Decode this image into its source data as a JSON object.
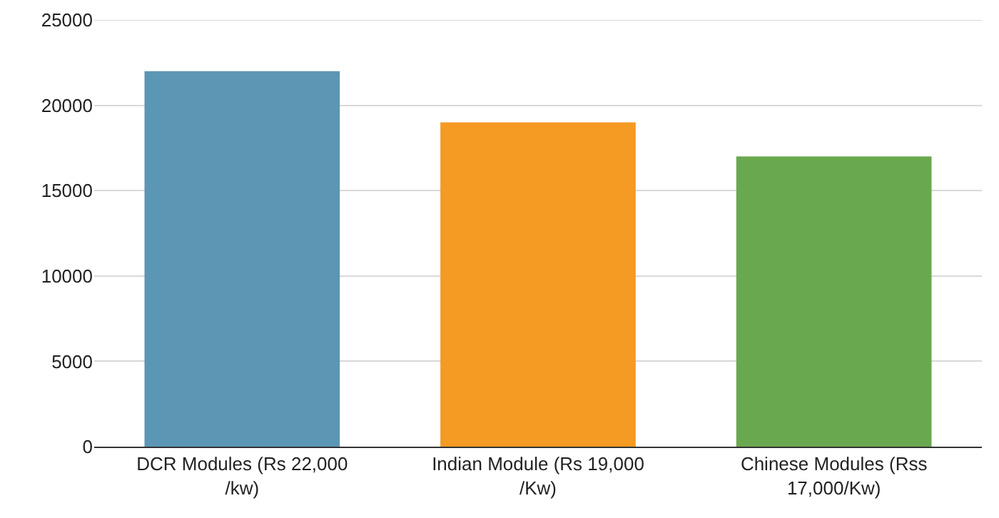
{
  "chart_data": {
    "type": "bar",
    "categories": [
      "DCR Modules (Rs 22,000 /kw)",
      "Indian Module (Rs 19,000 /Kw)",
      "Chinese Modules (Rss 17,000/Kw)"
    ],
    "values": [
      22000,
      19000,
      17000
    ],
    "colors": [
      "#5b96b4",
      "#f59a23",
      "#6aa84f"
    ],
    "ylim": [
      0,
      25000
    ],
    "yticks": [
      0,
      5000,
      10000,
      15000,
      20000,
      25000
    ],
    "grid": "y"
  }
}
